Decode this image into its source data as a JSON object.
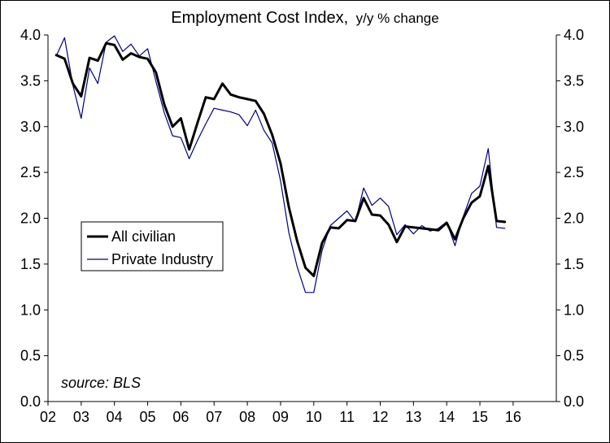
{
  "chart_data": {
    "type": "line",
    "title": "Employment Cost Index,",
    "title_suffix": "y/y % change",
    "xlabel": "",
    "ylabel": "",
    "ylim": [
      0,
      4
    ],
    "yticks": [
      "0.0",
      "0.5",
      "1.0",
      "1.5",
      "2.0",
      "2.5",
      "3.0",
      "3.5",
      "4.0"
    ],
    "xlim": [
      2002,
      2017.3
    ],
    "xticks": [
      {
        "value": 2002,
        "label": "02"
      },
      {
        "value": 2003,
        "label": "03"
      },
      {
        "value": 2004,
        "label": "04"
      },
      {
        "value": 2005,
        "label": "05"
      },
      {
        "value": 2006,
        "label": "06"
      },
      {
        "value": 2007,
        "label": "07"
      },
      {
        "value": 2008,
        "label": "08"
      },
      {
        "value": 2009,
        "label": "09"
      },
      {
        "value": 2010,
        "label": "10"
      },
      {
        "value": 2011,
        "label": "11"
      },
      {
        "value": 2012,
        "label": "12"
      },
      {
        "value": 2013,
        "label": "13"
      },
      {
        "value": 2014,
        "label": "14"
      },
      {
        "value": 2015,
        "label": "15"
      },
      {
        "value": 2016,
        "label": "16"
      }
    ],
    "x": [
      2002.25,
      2002.5,
      2002.75,
      2003.0,
      2003.25,
      2003.5,
      2003.75,
      2004.0,
      2004.25,
      2004.5,
      2004.75,
      2005.0,
      2005.25,
      2005.5,
      2005.75,
      2006.0,
      2006.25,
      2006.5,
      2006.75,
      2007.0,
      2007.25,
      2007.5,
      2007.75,
      2008.0,
      2008.25,
      2008.5,
      2008.75,
      2009.0,
      2009.25,
      2009.5,
      2009.75,
      2010.0,
      2010.25,
      2010.5,
      2010.75,
      2011.0,
      2011.25,
      2011.5,
      2011.75,
      2012.0,
      2012.25,
      2012.5,
      2012.75,
      2013.0,
      2013.25,
      2013.5,
      2013.75,
      2014.0,
      2014.25,
      2014.5,
      2014.75,
      2015.0,
      2015.25,
      2015.5,
      2015.75
    ],
    "series": [
      {
        "name": "All civilian",
        "color": "#000000",
        "width": 3,
        "values": [
          3.78,
          3.74,
          3.47,
          3.33,
          3.75,
          3.72,
          3.91,
          3.89,
          3.73,
          3.8,
          3.76,
          3.74,
          3.59,
          3.24,
          3.0,
          3.09,
          2.75,
          3.04,
          3.32,
          3.3,
          3.47,
          3.35,
          3.32,
          3.3,
          3.28,
          3.14,
          2.91,
          2.6,
          2.12,
          1.75,
          1.46,
          1.37,
          1.73,
          1.9,
          1.89,
          1.98,
          1.97,
          2.22,
          2.04,
          2.03,
          1.93,
          1.74,
          1.91,
          1.9,
          1.89,
          1.88,
          1.87,
          1.95,
          1.77,
          2.0,
          2.17,
          2.24,
          2.57,
          1.97,
          1.96
        ]
      },
      {
        "name": "Private Industry",
        "color": "#000080",
        "width": 1.2,
        "values": [
          3.77,
          3.97,
          3.45,
          3.09,
          3.64,
          3.47,
          3.92,
          3.99,
          3.82,
          3.9,
          3.77,
          3.85,
          3.49,
          3.15,
          2.9,
          2.88,
          2.65,
          2.85,
          3.03,
          3.2,
          3.18,
          3.16,
          3.13,
          3.01,
          3.18,
          2.96,
          2.82,
          2.41,
          1.84,
          1.47,
          1.19,
          1.19,
          1.65,
          1.92,
          2.0,
          2.08,
          1.96,
          2.33,
          2.14,
          2.22,
          2.13,
          1.82,
          1.93,
          1.83,
          1.92,
          1.86,
          1.89,
          1.96,
          1.7,
          2.02,
          2.27,
          2.35,
          2.76,
          1.9,
          1.89
        ]
      }
    ],
    "legend": {
      "placement": "left-middle",
      "items": [
        "All civilian",
        "Private Industry"
      ]
    },
    "annotation": "source: BLS",
    "grid": false
  }
}
